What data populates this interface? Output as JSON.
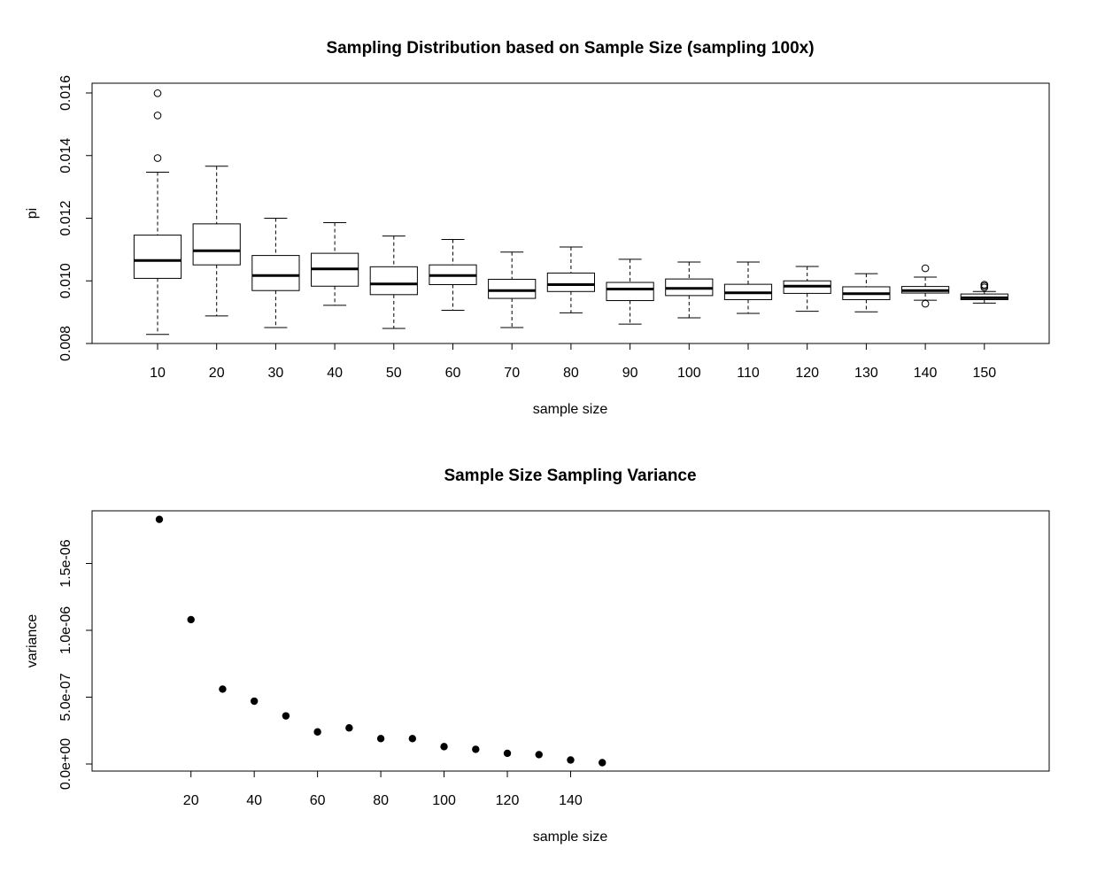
{
  "chart_data": [
    {
      "type": "boxplot",
      "title": "Sampling Distribution based on Sample Size (sampling 100x)",
      "xlabel": "sample size",
      "ylabel": "pi",
      "ylim": [
        0.008,
        0.0162
      ],
      "yticks": [
        "0.008",
        "0.010",
        "0.012",
        "0.014",
        "0.016"
      ],
      "ytick_values": [
        0.008,
        0.01,
        0.012,
        0.014,
        0.016
      ],
      "categories": [
        "10",
        "20",
        "30",
        "40",
        "50",
        "60",
        "70",
        "80",
        "90",
        "100",
        "110",
        "120",
        "130",
        "140",
        "150"
      ],
      "boxes": [
        {
          "whisker_low": 0.00829,
          "q1": 0.01008,
          "median": 0.01065,
          "q3": 0.01146,
          "whisker_high": 0.01347,
          "outliers": [
            0.01599,
            0.01528,
            0.01392
          ]
        },
        {
          "whisker_low": 0.00888,
          "q1": 0.01051,
          "median": 0.01096,
          "q3": 0.01182,
          "whisker_high": 0.01366,
          "outliers": []
        },
        {
          "whisker_low": 0.00851,
          "q1": 0.00969,
          "median": 0.01017,
          "q3": 0.01081,
          "whisker_high": 0.012,
          "outliers": []
        },
        {
          "whisker_low": 0.00922,
          "q1": 0.00983,
          "median": 0.01038,
          "q3": 0.01088,
          "whisker_high": 0.01186,
          "outliers": []
        },
        {
          "whisker_low": 0.00848,
          "q1": 0.00956,
          "median": 0.0099,
          "q3": 0.01045,
          "whisker_high": 0.01143,
          "outliers": []
        },
        {
          "whisker_low": 0.00906,
          "q1": 0.00988,
          "median": 0.01017,
          "q3": 0.01051,
          "whisker_high": 0.01132,
          "outliers": []
        },
        {
          "whisker_low": 0.00851,
          "q1": 0.00944,
          "median": 0.00969,
          "q3": 0.01005,
          "whisker_high": 0.01092,
          "outliers": []
        },
        {
          "whisker_low": 0.00898,
          "q1": 0.00966,
          "median": 0.00988,
          "q3": 0.01025,
          "whisker_high": 0.01108,
          "outliers": []
        },
        {
          "whisker_low": 0.00862,
          "q1": 0.00937,
          "median": 0.00974,
          "q3": 0.00995,
          "whisker_high": 0.01069,
          "outliers": []
        },
        {
          "whisker_low": 0.00882,
          "q1": 0.00953,
          "median": 0.00976,
          "q3": 0.01006,
          "whisker_high": 0.0106,
          "outliers": []
        },
        {
          "whisker_low": 0.00896,
          "q1": 0.0094,
          "median": 0.00962,
          "q3": 0.00989,
          "whisker_high": 0.0106,
          "outliers": []
        },
        {
          "whisker_low": 0.00903,
          "q1": 0.0096,
          "median": 0.00983,
          "q3": 0.01,
          "whisker_high": 0.01046,
          "outliers": []
        },
        {
          "whisker_low": 0.00901,
          "q1": 0.0094,
          "median": 0.00959,
          "q3": 0.00981,
          "whisker_high": 0.01023,
          "outliers": []
        },
        {
          "whisker_low": 0.00938,
          "q1": 0.00961,
          "median": 0.00969,
          "q3": 0.00982,
          "whisker_high": 0.01012,
          "outliers": [
            0.0104,
            0.00927
          ]
        },
        {
          "whisker_low": 0.00929,
          "q1": 0.0094,
          "median": 0.00946,
          "q3": 0.00958,
          "whisker_high": 0.00966,
          "outliers": [
            0.00988,
            0.00984,
            0.00979
          ]
        }
      ]
    },
    {
      "type": "scatter",
      "title": "Sample Size Sampling Variance",
      "xlabel": "sample size",
      "ylabel": "variance",
      "xlim": [
        5,
        155
      ],
      "ylim": [
        -5e-08,
        1.9e-06
      ],
      "xticks": [
        "20",
        "40",
        "60",
        "80",
        "100",
        "120",
        "140"
      ],
      "xtick_values": [
        20,
        40,
        60,
        80,
        100,
        120,
        140
      ],
      "yticks": [
        "0.0e+00",
        "5.0e-07",
        "1.0e-06",
        "1.5e-06"
      ],
      "ytick_values": [
        0,
        5e-07,
        1e-06,
        1.5e-06
      ],
      "x": [
        10,
        20,
        30,
        40,
        50,
        60,
        70,
        80,
        90,
        100,
        110,
        120,
        130,
        140,
        150
      ],
      "y": [
        1.83e-06,
        1.08e-06,
        5.6e-07,
        4.7e-07,
        3.6e-07,
        2.4e-07,
        2.7e-07,
        1.9e-07,
        1.9e-07,
        1.3e-07,
        1.1e-07,
        8e-08,
        7e-08,
        3e-08,
        1e-08
      ]
    }
  ]
}
